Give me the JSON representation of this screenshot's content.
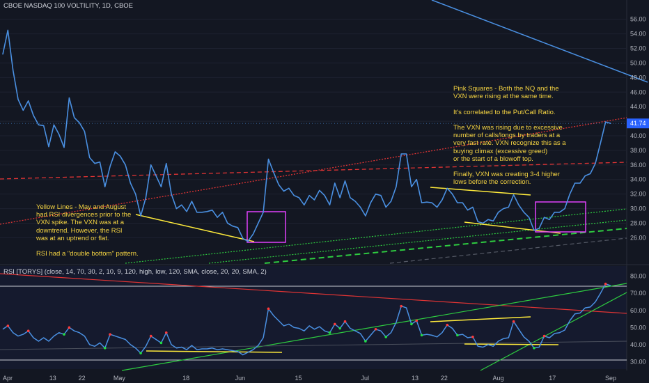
{
  "header": {
    "title": "CBOE NASDAQ 100 VOLTILITY, 1D, CBOE",
    "rsi_title": "RSI [TORYS] (close, 14, 70, 30, 2, 10, 9, 120, high, low, 120, SMA, close, 20, 20, SMA, 2)"
  },
  "annotations": {
    "left": "Yellow Lines - May and August\nhad RSI divergences prior to the\nVXN spike. The VXN was at a\ndowntrend. However, the RSI\nwas at an uptrend or flat.\n\nRSI had a \"double bottom\" pattern.",
    "right": "Pink Squares - Both the NQ and the\nVXN were rising at the same time.\n\nIt's correlated to the Put/Call Ratio.\n\nThe VXN was rising due to excessive\nnumber of calls/longs by traders at a\nvery fast rate. VXN recognize this as a\nbuying climax (excessive greed)\nor the start of a blowoff top.\n\nFinally, VXN was creating 3-4 higher\nlows before the correction."
  },
  "colors": {
    "background": "#131722",
    "price_line": "#4a90e2",
    "price_label_bg": "#2962ff",
    "rsi_line": "#4a90e2",
    "trend_red": "#e03434",
    "trend_green": "#2ecc40",
    "trend_yellow": "#ffeb3b",
    "pink_box": "#e040fb",
    "axis_text": "#b2b5be",
    "grid": "#1e2230"
  },
  "chart_data": [
    {
      "type": "line",
      "name": "VXN",
      "x_labels": [
        "Apr",
        "13",
        "22",
        "May",
        "18",
        "Jun",
        "15",
        "Jul",
        "13",
        "22",
        "Aug",
        "17",
        "Sep"
      ],
      "ylim": [
        22.5,
        57.5
      ],
      "y_ticks": [
        26.0,
        28.0,
        30.0,
        32.0,
        34.0,
        36.0,
        38.0,
        40.0,
        42.0,
        44.0,
        46.0,
        48.0,
        50.0,
        52.0,
        54.0,
        56.0
      ],
      "last_value_label": "41.74",
      "values": [
        51.2,
        54.5,
        49.0,
        45.0,
        43.5,
        44.8,
        42.8,
        41.5,
        41.4,
        38.5,
        41.5,
        40.2,
        38.4,
        45.2,
        42.5,
        41.8,
        40.6,
        37.0,
        36.2,
        36.4,
        33.0,
        35.8,
        37.8,
        37.2,
        36.0,
        33.5,
        32.0,
        29.0,
        31.5,
        36.0,
        34.5,
        33.0,
        36.2,
        32.0,
        30.0,
        30.5,
        29.6,
        31.0,
        29.5,
        29.5,
        29.6,
        29.8,
        28.8,
        29.5,
        28.0,
        27.6,
        27.4,
        25.9,
        25.5,
        26.5,
        28.0,
        29.5,
        36.8,
        35.0,
        33.3,
        32.4,
        32.8,
        31.8,
        31.5,
        30.5,
        31.8,
        31.2,
        32.5,
        31.8,
        30.5,
        33.5,
        31.5,
        33.8,
        31.5,
        31.0,
        30.2,
        29.0,
        30.8,
        32.0,
        31.8,
        30.2,
        31.0,
        33.0,
        37.5,
        37.5,
        33.0,
        34.0,
        30.8,
        30.9,
        30.8,
        30.2,
        31.2,
        32.8,
        32.0,
        30.8,
        30.8,
        29.8,
        30.2,
        28.2,
        28.0,
        28.5,
        28.3,
        29.5,
        30.0,
        30.2,
        31.9,
        30.5,
        29.5,
        28.8,
        27.0,
        27.3,
        28.8,
        28.5,
        29.5,
        29.5,
        30.0,
        32.0,
        33.5,
        33.5,
        34.5,
        34.8,
        36.2,
        39.0,
        41.9,
        41.7
      ]
    },
    {
      "type": "line",
      "name": "RSI",
      "ylim": [
        26.5,
        81.5
      ],
      "y_ticks": [
        30.0,
        40.0,
        50.0,
        60.0,
        70.0,
        80.0
      ],
      "levels": [
        70,
        30
      ],
      "values": [
        49.0,
        51.0,
        47.0,
        45.0,
        46.0,
        48.0,
        44.0,
        42.0,
        44.0,
        42.0,
        45.0,
        47.0,
        46.0,
        50.0,
        48.0,
        47.0,
        45.0,
        40.0,
        39.0,
        41.0,
        38.0,
        46.0,
        45.0,
        44.0,
        43.0,
        40.0,
        38.0,
        35.0,
        39.0,
        45.0,
        43.0,
        41.0,
        47.0,
        40.0,
        38.0,
        38.5,
        37.0,
        39.5,
        37.0,
        37.5,
        37.5,
        38.0,
        37.0,
        37.5,
        37.0,
        36.5,
        36.0,
        34.0,
        35.5,
        37.0,
        39.5,
        44.0,
        61.0,
        57.0,
        54.0,
        51.0,
        52.0,
        50.0,
        49.5,
        48.0,
        51.0,
        49.0,
        50.5,
        48.0,
        47.0,
        52.0,
        49.5,
        53.5,
        49.5,
        48.0,
        46.5,
        42.0,
        45.5,
        49.0,
        48.0,
        44.5,
        47.0,
        53.0,
        62.5,
        61.5,
        52.0,
        54.0,
        45.5,
        46.0,
        45.5,
        44.5,
        47.0,
        51.5,
        49.5,
        45.5,
        46.0,
        44.0,
        44.5,
        39.0,
        38.5,
        40.0,
        39.0,
        42.0,
        43.5,
        44.0,
        53.5,
        49.0,
        44.5,
        42.0,
        38.0,
        38.5,
        45.0,
        44.0,
        46.5,
        47.0,
        48.5,
        54.0,
        58.0,
        58.5,
        61.5,
        62.0,
        65.0,
        70.0,
        75.5,
        74.5
      ]
    }
  ]
}
